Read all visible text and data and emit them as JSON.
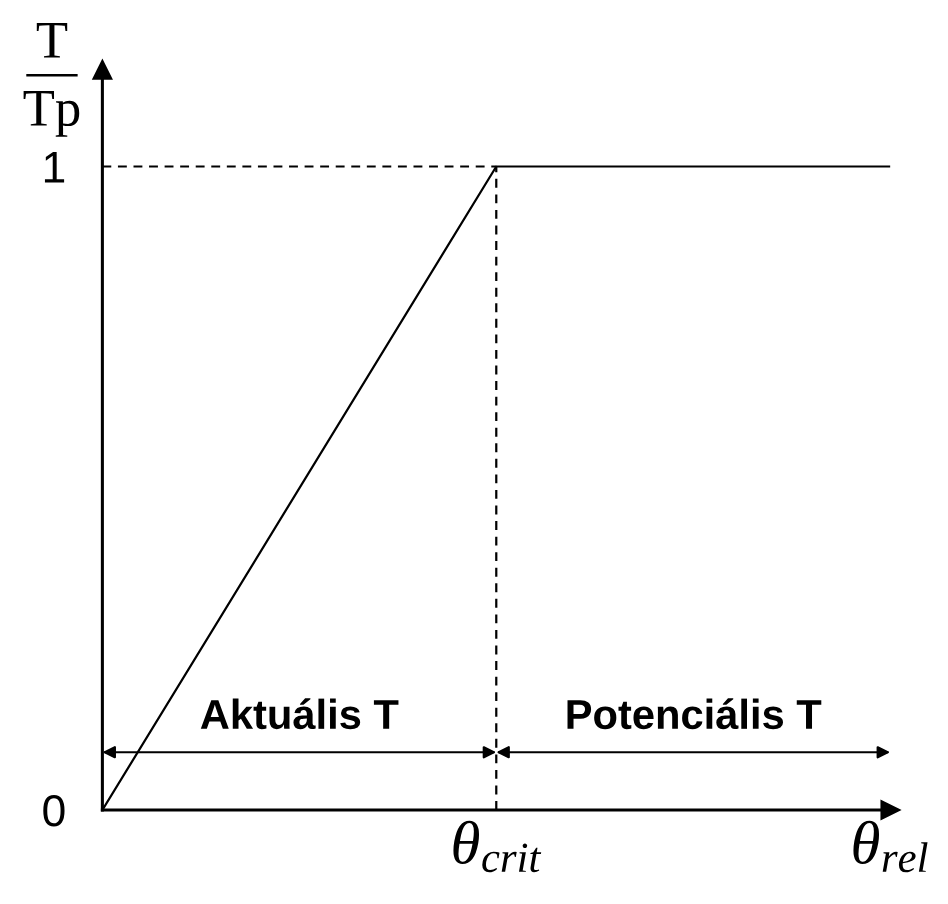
{
  "chart_data": {
    "type": "line",
    "ylabel": "T\nTp",
    "categories": [
      null,
      "θ$_{crit}$",
      "θ$_{rel}$"
    ],
    "series": [
      {
        "color": "#000000",
        "values": [
          0,
          1,
          1
        ]
      }
    ],
    "ylim": [
      0,
      1.15
    ],
    "yticks": [
      0,
      1
    ],
    "ref_lines": [
      {
        "axis": "y",
        "value": 1,
        "line_style": "dashed"
      },
      {
        "axis": "x",
        "value": "θ$_{crit}$",
        "line_style": "dashed"
      }
    ],
    "annotations": [
      "Aktuális T",
      "Potenciális T"
    ]
  }
}
